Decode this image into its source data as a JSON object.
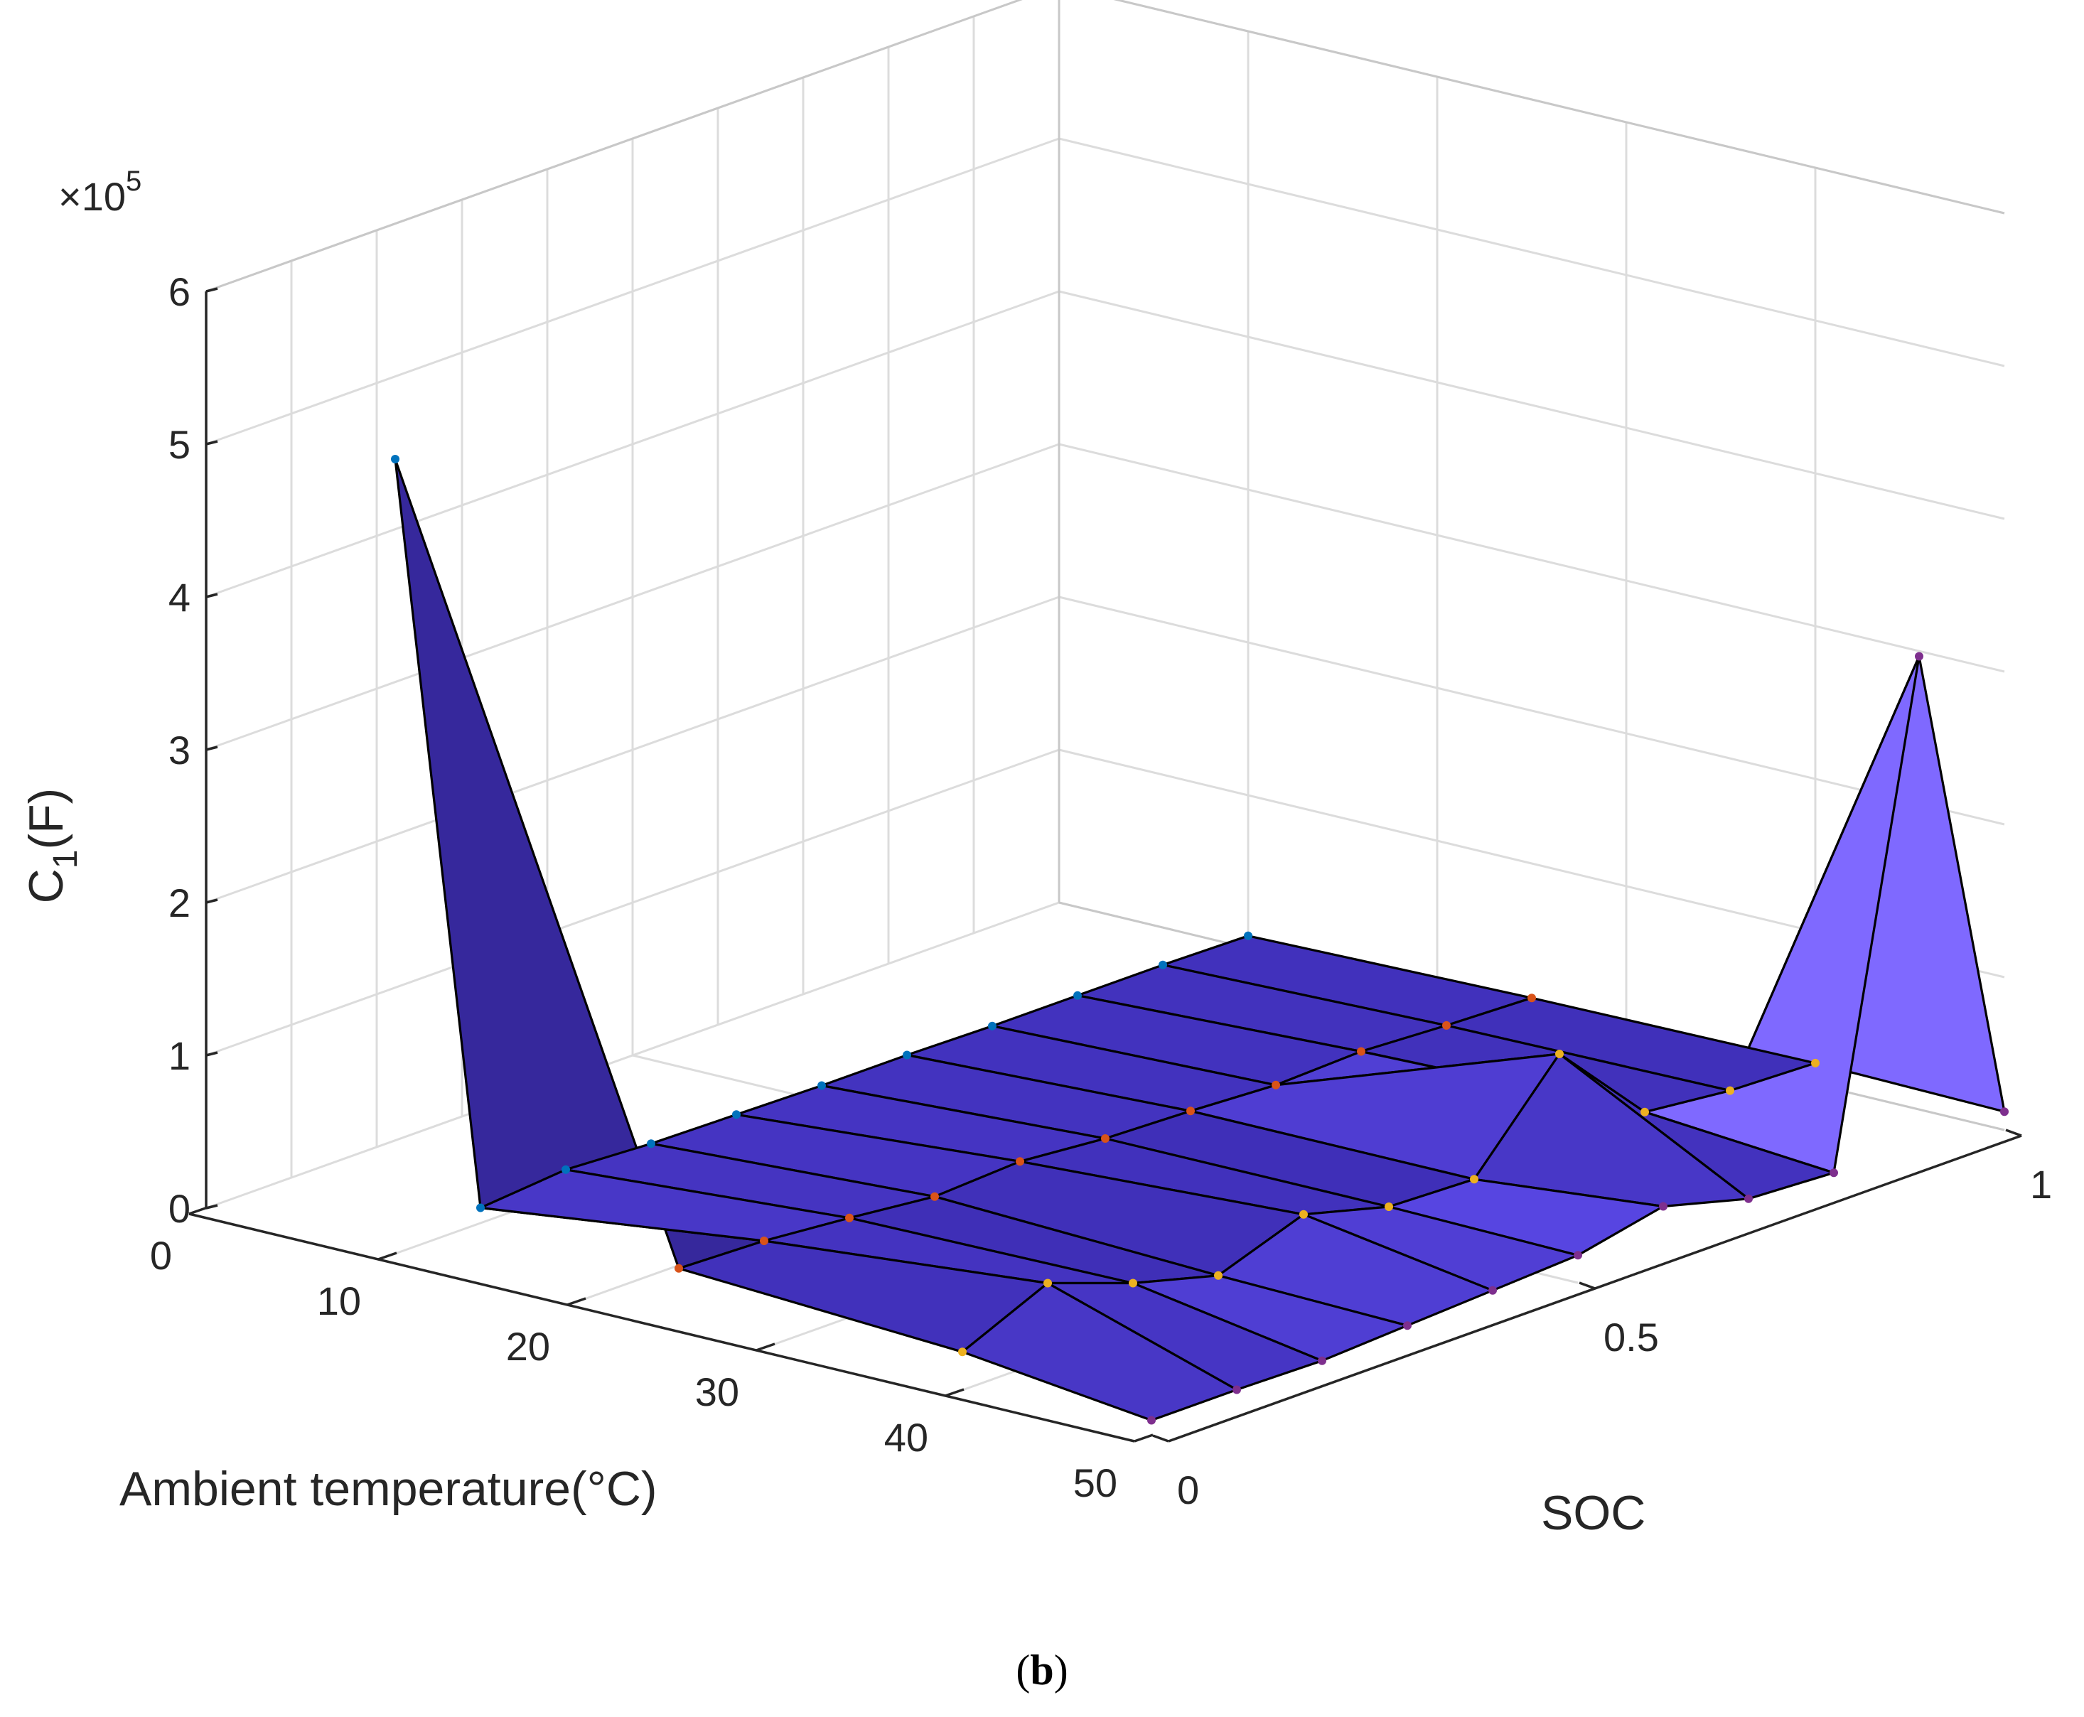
{
  "chart_data": {
    "type": "surface3d",
    "caption": "(b)",
    "caption_letter": "b",
    "zlabel": "C",
    "zlabel_subscript": "1",
    "zlabel_unit": "(F)",
    "xlabel": "Ambient temperature(°C)",
    "ylabel": "SOC",
    "exponent_label": "×10",
    "exponent_power": "5",
    "x_ticks": [
      "0",
      "10",
      "20",
      "30",
      "40",
      "50"
    ],
    "y_ticks": [
      "0",
      "0.5",
      "1"
    ],
    "z_ticks": [
      "0",
      "1",
      "2",
      "3",
      "4",
      "5",
      "6"
    ],
    "xlim": [
      0,
      50
    ],
    "ylim": [
      0,
      1
    ],
    "zlim": [
      0,
      600000
    ],
    "face_color": "#3f2fb8",
    "edge_color": "#000000",
    "marker_colors": [
      "#0072bd",
      "#d95319",
      "#edb120",
      "#7e2f8e"
    ],
    "soc": [
      0.0,
      0.1,
      0.2,
      0.3,
      0.4,
      0.5,
      0.6,
      0.7,
      0.8,
      0.9,
      1.0
    ],
    "temperature": [
      10,
      25,
      40,
      50
    ],
    "c1_values": [
      [
        520000,
        10000,
        15000,
        12000,
        11000,
        10000,
        10000,
        9000,
        9000,
        9000,
        8000
      ],
      [
        35000,
        33000,
        28000,
        22000,
        25000,
        20000,
        18000,
        15000,
        17000,
        14000,
        12000
      ],
      [
        25000,
        50000,
        30000,
        15000,
        35000,
        20000,
        18000,
        80000,
        22000,
        16000,
        14000
      ],
      [
        10000,
        10000,
        9000,
        12000,
        15000,
        18000,
        30000,
        15000,
        12000,
        330000,
        12000
      ]
    ]
  }
}
